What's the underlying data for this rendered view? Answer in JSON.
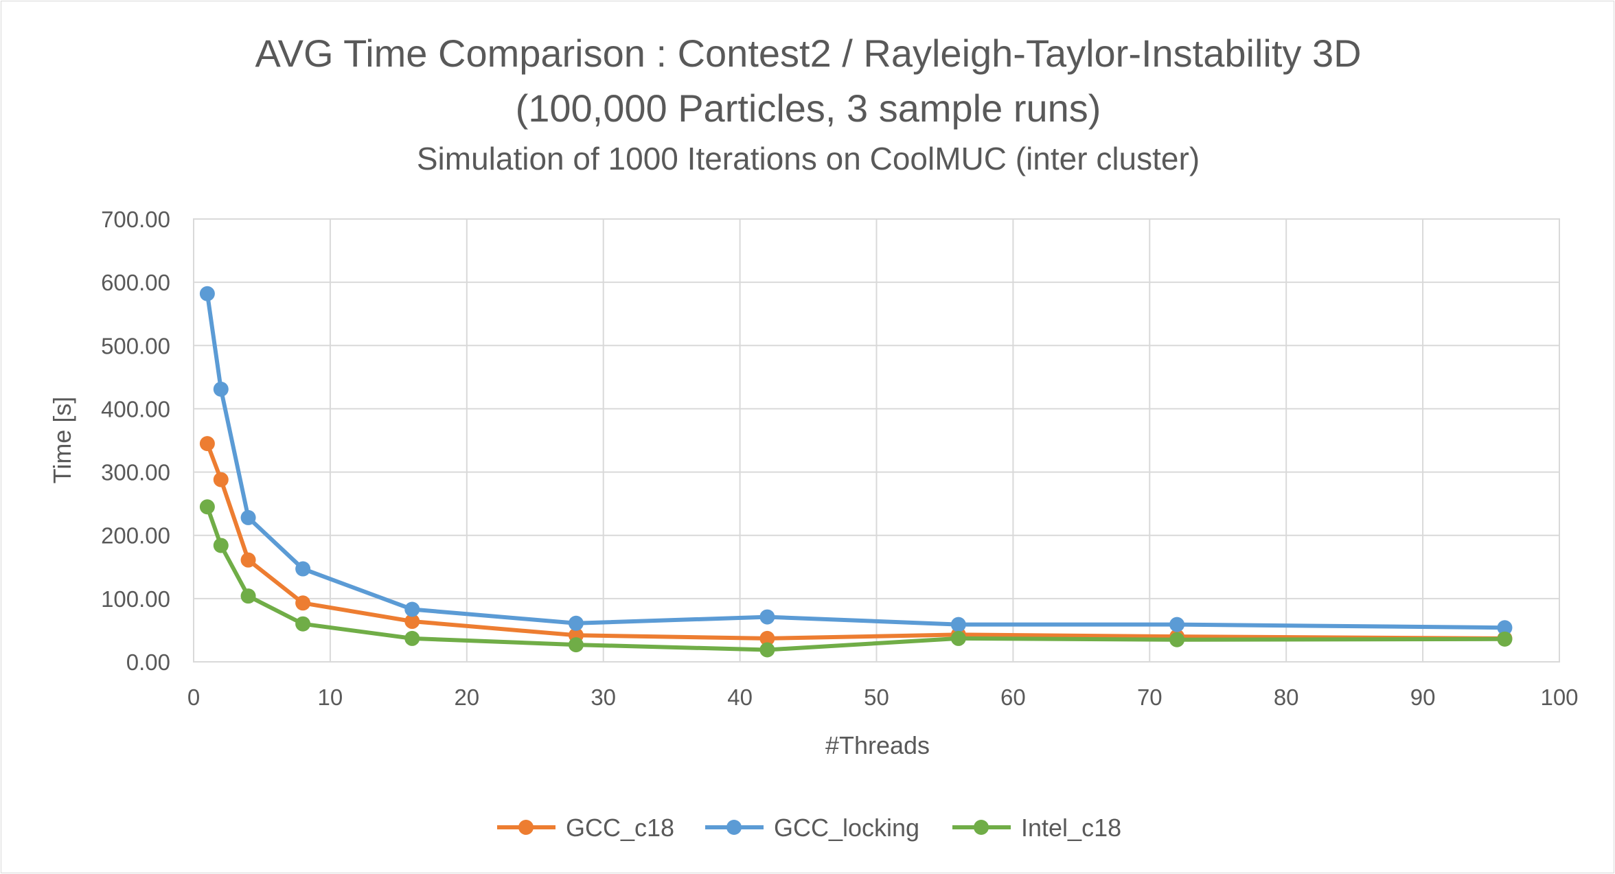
{
  "chart_data": {
    "type": "line",
    "title": "AVG Time Comparison : Contest2 / Rayleigh-Taylor-Instability 3D",
    "title_line2": "(100,000 Particles, 3 sample runs)",
    "subtitle": "Simulation of 1000 Iterations on CoolMUC (inter cluster)",
    "xlabel": "#Threads",
    "ylabel": "Time [s]",
    "xlim": [
      0,
      100
    ],
    "ylim": [
      0,
      700
    ],
    "x_ticks": [
      0,
      10,
      20,
      30,
      40,
      50,
      60,
      70,
      80,
      90,
      100
    ],
    "y_ticks": [
      "0.00",
      "100.00",
      "200.00",
      "300.00",
      "400.00",
      "500.00",
      "600.00",
      "700.00"
    ],
    "grid": true,
    "legend_position": "bottom",
    "x": [
      1,
      2,
      4,
      8,
      16,
      28,
      42,
      56,
      72,
      96
    ],
    "series": [
      {
        "name": "GCC_c18",
        "color": "#ed7d31",
        "values": [
          345,
          288,
          161,
          93,
          64,
          42,
          37,
          43,
          40,
          37
        ]
      },
      {
        "name": "GCC_locking",
        "color": "#5b9bd5",
        "values": [
          582,
          431,
          228,
          147,
          83,
          61,
          71,
          59,
          59,
          54
        ]
      },
      {
        "name": "Intel_c18",
        "color": "#70ad47",
        "values": [
          245,
          184,
          104,
          60,
          37,
          27,
          19,
          37,
          35,
          36
        ]
      }
    ]
  }
}
